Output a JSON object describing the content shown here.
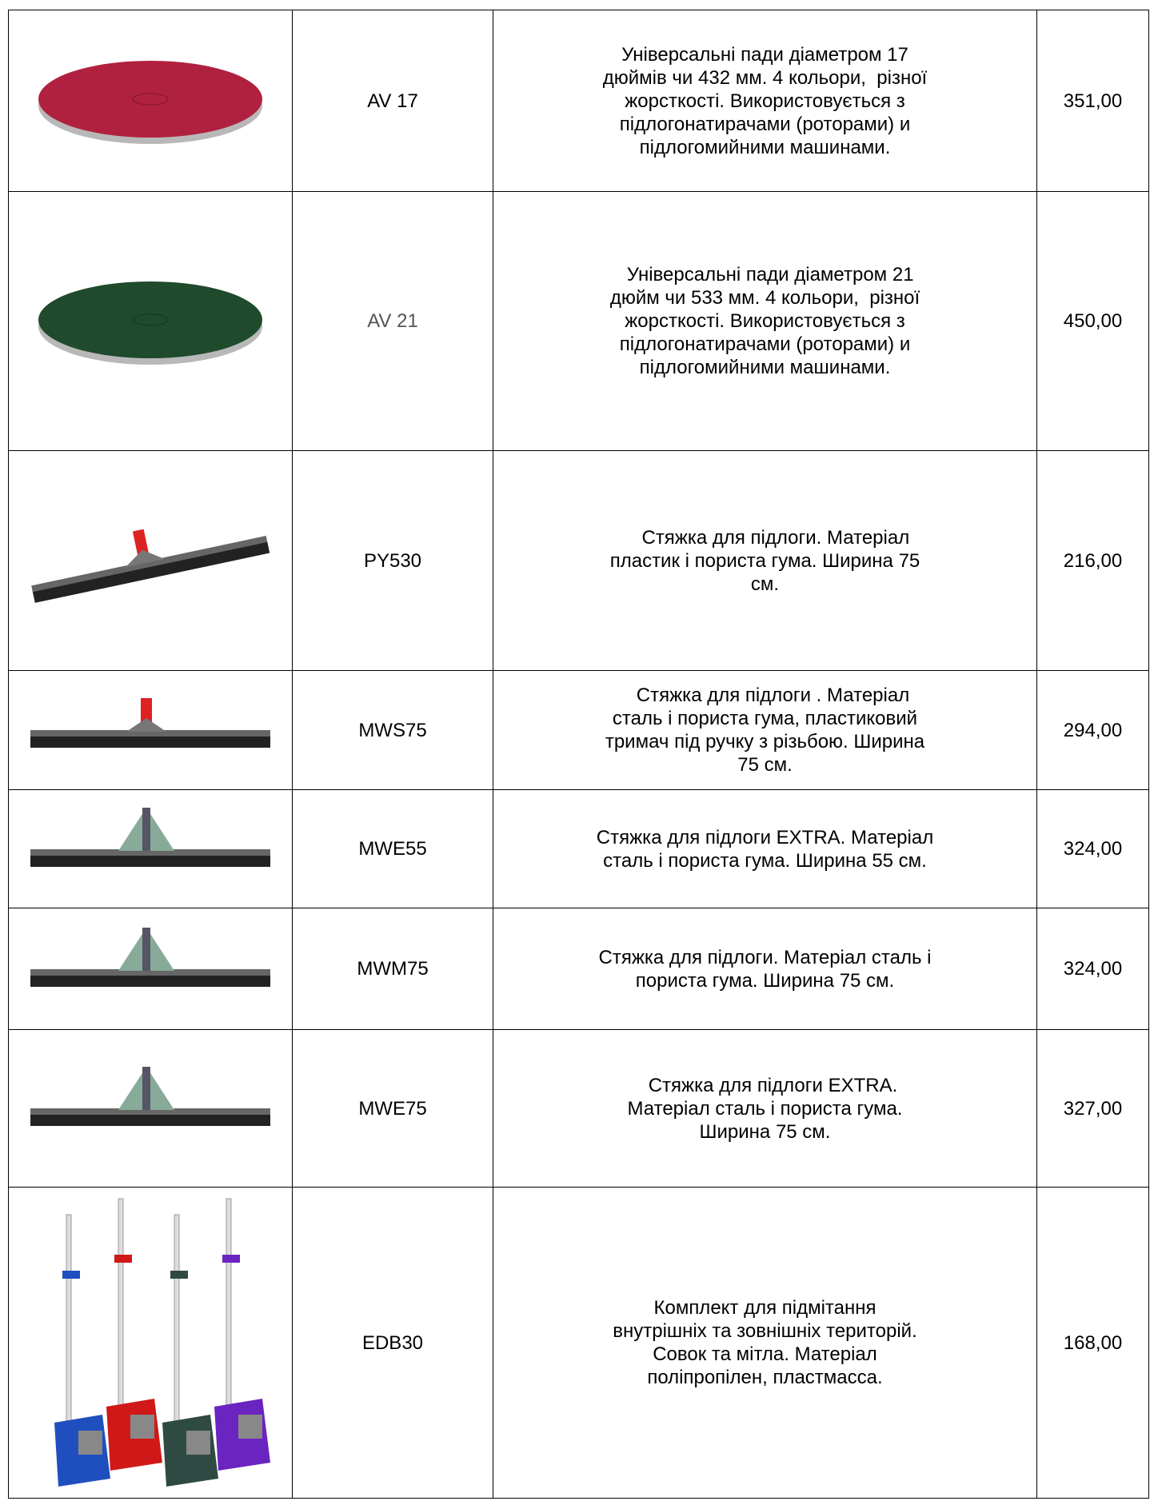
{
  "rows": [
    {
      "code": "AV 17",
      "description": [
        "Універсальні пади діаметром 17",
        "дюймів чи 432 мм. 4 кольори,  різної",
        "жорсткості. Використовується з",
        "підлогонатирачами (роторами) и",
        "підлогомийними машинами."
      ],
      "price": "351,00"
    },
    {
      "code": "AV 21",
      "description": [
        "  Універсальні пади діаметром 21",
        "дюйм чи 533 мм. 4 кольори,  різної",
        "жорсткості. Використовується з",
        "підлогонатирачами (роторами) и",
        "підлогомийними машинами."
      ],
      "price": "450,00"
    },
    {
      "code": "PY530",
      "description": [
        "    Стяжка для підлоги. Матеріал",
        "пластик і пориста гума. Ширина 75",
        "см."
      ],
      "price": "216,00"
    },
    {
      "code": "MWS75",
      "description": [
        "   Стяжка для підлоги . Матеріал",
        "сталь і пориста гума, пластиковий",
        "тримач під ручку з різьбою. Ширина",
        "75 см."
      ],
      "price": "294,00"
    },
    {
      "code": "MWE55",
      "description": [
        "Стяжка для підлоги EXTRA. Матеріал",
        "сталь і пориста гума. Ширина 55 см."
      ],
      "price": "324,00"
    },
    {
      "code": "MWM75",
      "description": [
        "Стяжка для підлоги. Матеріал сталь і",
        "пориста гума. Ширина 75 см."
      ],
      "price": "324,00"
    },
    {
      "code": "MWE75",
      "description": [
        "   Стяжка для підлоги EXTRA.",
        "Матеріал сталь і пориста гума.",
        "Ширина 75 см."
      ],
      "price": "327,00"
    },
    {
      "code": "EDB30",
      "description": [
        "Комплект для підмітання",
        "внутрішніх та зовнішніх територій.",
        "Совок та мітла. Матеріал",
        "поліпропілен, пластмасса."
      ],
      "price": "168,00"
    }
  ]
}
